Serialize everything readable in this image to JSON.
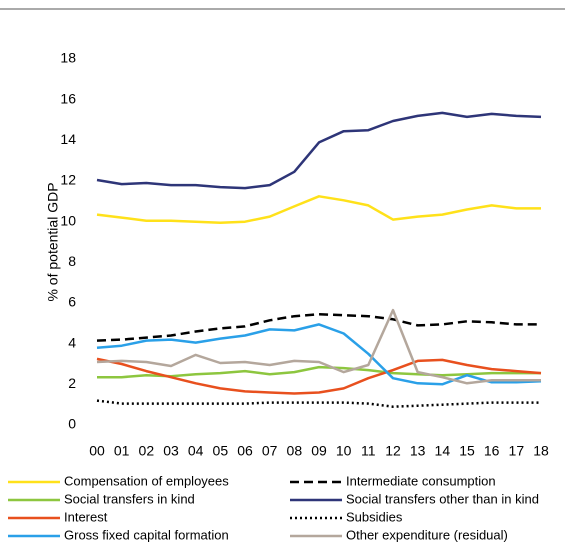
{
  "chart_data": {
    "type": "line",
    "ylabel": "% of potential GDP",
    "categories": [
      "00",
      "01",
      "02",
      "03",
      "04",
      "05",
      "06",
      "07",
      "08",
      "09",
      "10",
      "11",
      "12",
      "13",
      "14",
      "15",
      "16",
      "17",
      "18"
    ],
    "ylim": [
      0,
      18
    ],
    "yticks": [
      0,
      2,
      4,
      6,
      8,
      10,
      12,
      14,
      16,
      18
    ],
    "grid": false,
    "legend": "bottom",
    "series": [
      {
        "name": "Compensation of employees",
        "color": "#ffe11a",
        "style": "solid",
        "values": [
          10.35,
          10.2,
          10.05,
          10.05,
          10.0,
          9.95,
          10.0,
          10.25,
          10.75,
          11.25,
          11.05,
          10.8,
          10.1,
          10.25,
          10.35,
          10.6,
          10.8,
          10.65,
          10.65
        ]
      },
      {
        "name": "Intermediate consumption",
        "color": "#000000",
        "style": "dashed",
        "values": [
          4.15,
          4.2,
          4.3,
          4.4,
          4.6,
          4.75,
          4.85,
          5.15,
          5.35,
          5.45,
          5.4,
          5.35,
          5.2,
          4.9,
          4.95,
          5.1,
          5.05,
          4.95,
          4.95
        ]
      },
      {
        "name": "Social transfers in kind",
        "color": "#8dc63f",
        "style": "solid",
        "values": [
          2.35,
          2.35,
          2.45,
          2.4,
          2.5,
          2.55,
          2.65,
          2.5,
          2.6,
          2.85,
          2.8,
          2.7,
          2.55,
          2.5,
          2.45,
          2.5,
          2.55,
          2.55,
          2.55
        ]
      },
      {
        "name": "Social transfers other than in kind",
        "color": "#2e3578",
        "style": "solid",
        "values": [
          12.05,
          11.85,
          11.9,
          11.8,
          11.8,
          11.7,
          11.65,
          11.8,
          12.45,
          13.9,
          14.45,
          14.5,
          14.95,
          15.2,
          15.35,
          15.15,
          15.3,
          15.2,
          15.15
        ]
      },
      {
        "name": "Interest",
        "color": "#e8501e",
        "style": "solid",
        "values": [
          3.25,
          3.0,
          2.65,
          2.35,
          2.05,
          1.8,
          1.65,
          1.6,
          1.55,
          1.6,
          1.8,
          2.3,
          2.7,
          3.15,
          3.2,
          2.95,
          2.75,
          2.65,
          2.55
        ]
      },
      {
        "name": "Subsidies",
        "color": "#000000",
        "style": "dotted",
        "values": [
          1.2,
          1.05,
          1.05,
          1.05,
          1.05,
          1.05,
          1.05,
          1.1,
          1.1,
          1.1,
          1.1,
          1.05,
          0.9,
          0.95,
          1.0,
          1.05,
          1.1,
          1.1,
          1.1
        ]
      },
      {
        "name": "Gross fixed capital formation",
        "color": "#2aa0e8",
        "style": "solid",
        "values": [
          3.8,
          3.9,
          4.15,
          4.2,
          4.05,
          4.25,
          4.4,
          4.7,
          4.65,
          4.95,
          4.5,
          3.5,
          2.3,
          2.05,
          2.0,
          2.45,
          2.1,
          2.1,
          2.15
        ]
      },
      {
        "name": "Other expenditure (residual)",
        "color": "#b4a79c",
        "style": "solid",
        "values": [
          3.1,
          3.15,
          3.1,
          2.9,
          3.45,
          3.05,
          3.1,
          2.95,
          3.15,
          3.1,
          2.6,
          2.95,
          5.65,
          2.6,
          2.35,
          2.05,
          2.2,
          2.2,
          2.2
        ]
      }
    ]
  }
}
